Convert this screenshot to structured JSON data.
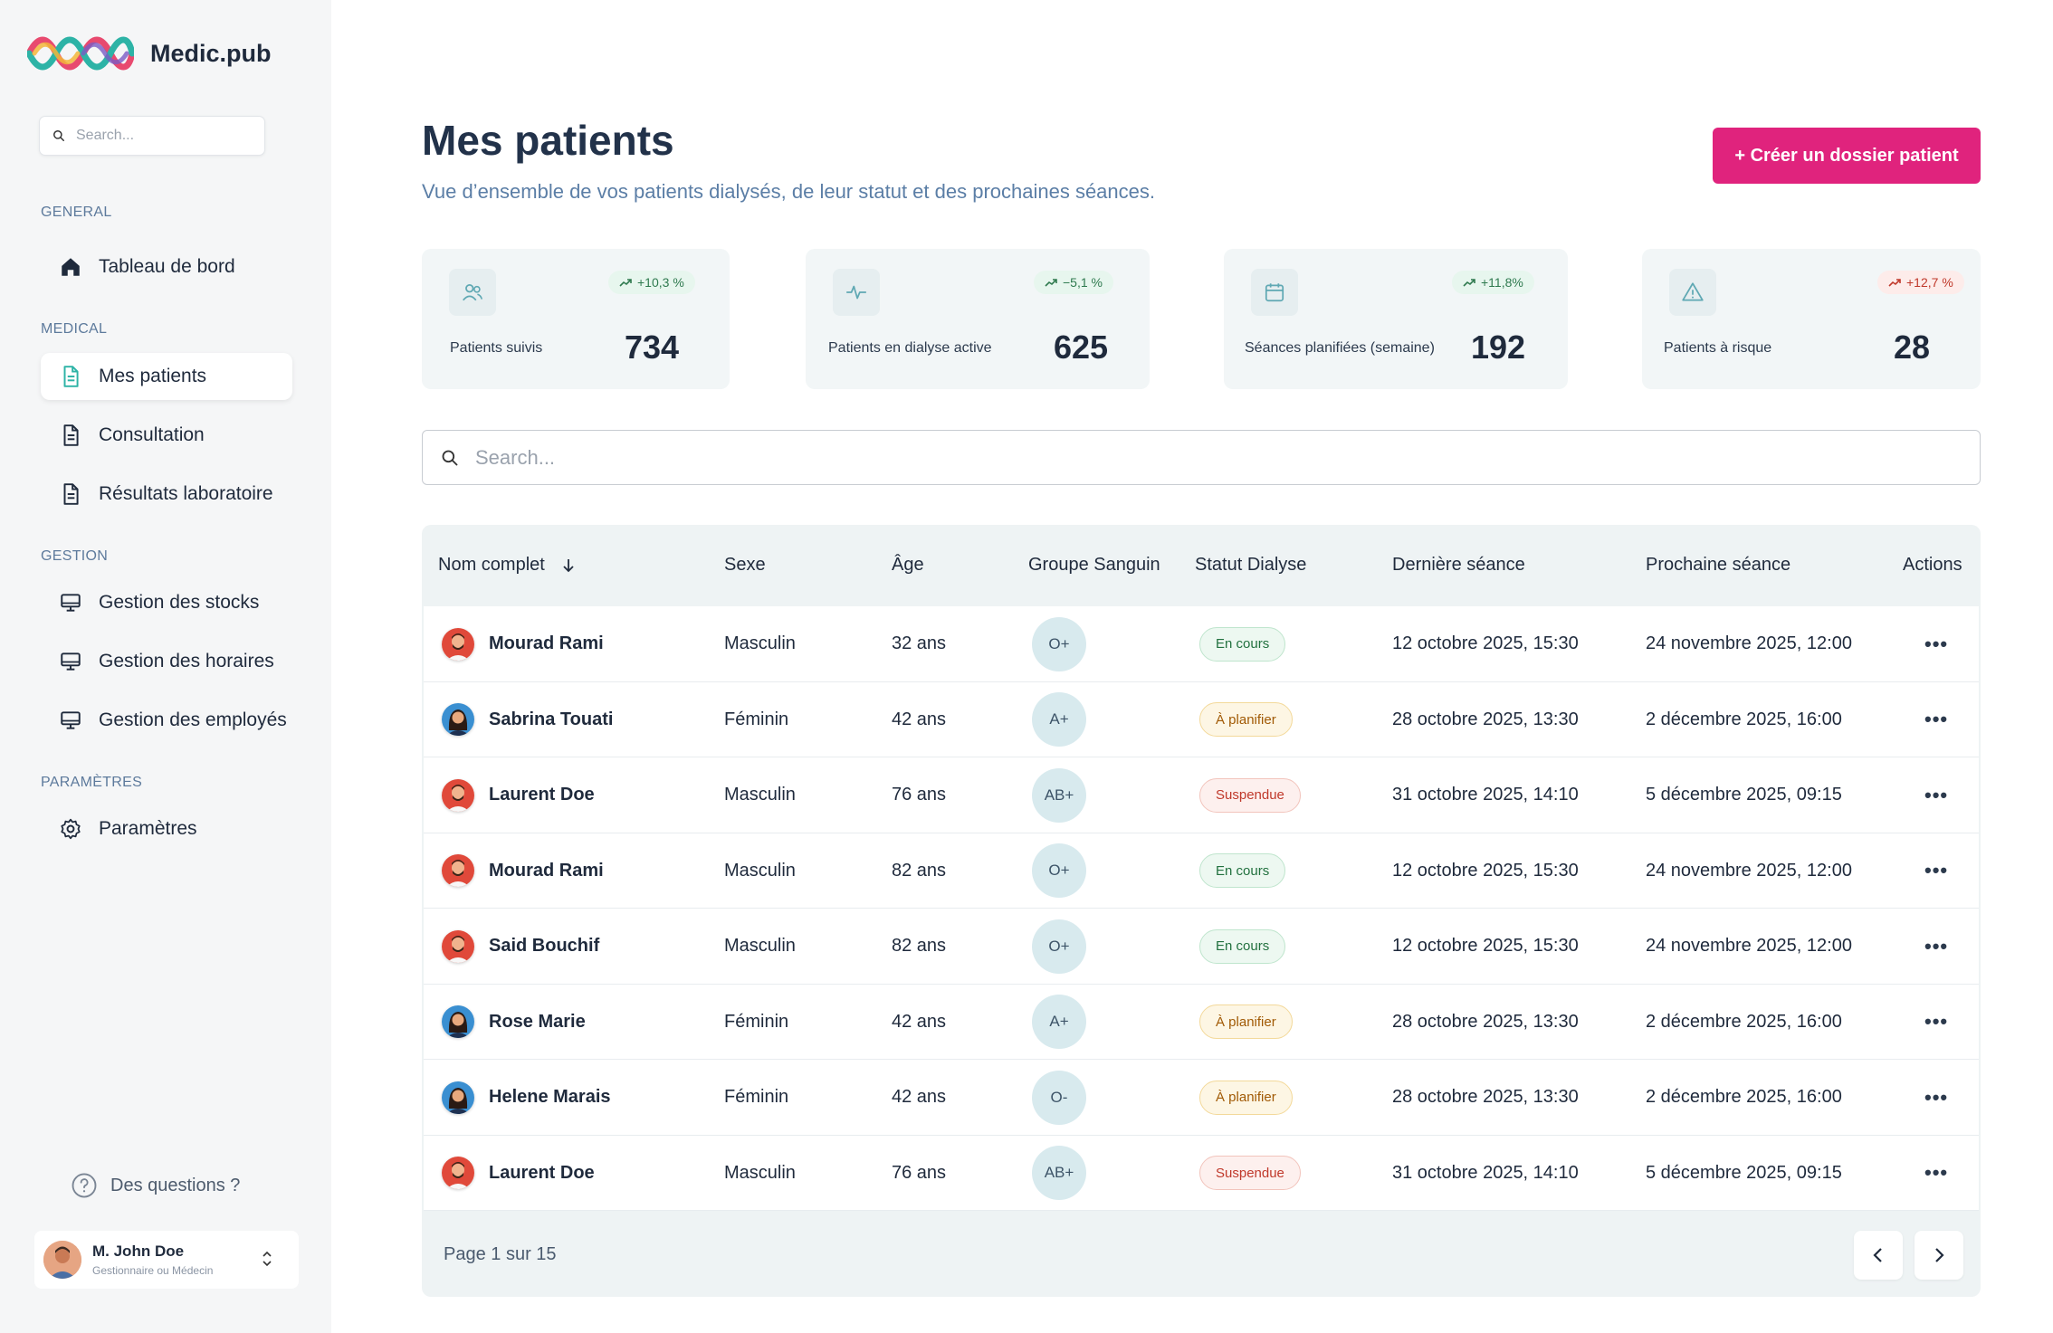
{
  "app": {
    "name": "Medic.pub"
  },
  "sidebar": {
    "search_placeholder": "Search...",
    "sections": {
      "general": "GENERAL",
      "medical": "MEDICAL",
      "gestion": "GESTION",
      "parametres": "PARAMÈTRES"
    },
    "items": {
      "dashboard": "Tableau de bord",
      "patients": "Mes patients",
      "consultation": "Consultation",
      "lab": "Résultats laboratoire",
      "stocks": "Gestion des stocks",
      "horaires": "Gestion des horaires",
      "employes": "Gestion des employés",
      "settings": "Paramètres"
    },
    "active_item": "patients",
    "help": "Des questions ?",
    "user": {
      "name": "M. John Doe",
      "role": "Gestionnaire ou Médecin"
    }
  },
  "header": {
    "title": "Mes patients",
    "subtitle": "Vue d’ensemble de vos patients dialysés, de leur statut et des prochaines séances.",
    "create_button": "+ Créer un dossier patient"
  },
  "stats": [
    {
      "label": "Patients suivis",
      "value": "734",
      "trend": "+10,3 %",
      "trend_color": "green",
      "icon": "users-icon"
    },
    {
      "label": "Patients en dialyse active",
      "value": "625",
      "trend": "−5,1 %",
      "trend_color": "green",
      "icon": "activity-icon"
    },
    {
      "label": "Séances planifiées (semaine)",
      "value": "192",
      "trend": "+11,8%",
      "trend_color": "green",
      "icon": "calendar-icon"
    },
    {
      "label": "Patients à risque",
      "value": "28",
      "trend": "+12,7 %",
      "trend_color": "red",
      "icon": "warning-icon"
    }
  ],
  "search": {
    "placeholder": "Search..."
  },
  "table": {
    "columns": {
      "name": "Nom complet",
      "sex": "Sexe",
      "age": "Âge",
      "blood": "Groupe Sanguin",
      "status": "Statut Dialyse",
      "last": "Dernière séance",
      "next": "Prochaine séance",
      "actions": "Actions"
    },
    "rows": [
      {
        "name": "Mourad Rami",
        "sex": "Masculin",
        "age": "32 ans",
        "blood": "O+",
        "status": "En cours",
        "status_type": "green",
        "last": "12 octobre 2025, 15:30",
        "next": "24 novembre 2025, 12:00",
        "avatar": "male"
      },
      {
        "name": "Sabrina Touati",
        "sex": "Féminin",
        "age": "42 ans",
        "blood": "A+",
        "status": "À planifier",
        "status_type": "orange",
        "last": "28 octobre 2025, 13:30",
        "next": "2 décembre 2025, 16:00",
        "avatar": "female"
      },
      {
        "name": "Laurent Doe",
        "sex": "Masculin",
        "age": "76 ans",
        "blood": "AB+",
        "status": "Suspendue",
        "status_type": "red",
        "last": "31 octobre 2025, 14:10",
        "next": "5 décembre 2025, 09:15",
        "avatar": "male"
      },
      {
        "name": "Mourad Rami",
        "sex": "Masculin",
        "age": "82 ans",
        "blood": "O+",
        "status": "En cours",
        "status_type": "green",
        "last": "12 octobre 2025, 15:30",
        "next": "24 novembre 2025, 12:00",
        "avatar": "male"
      },
      {
        "name": "Said Bouchif",
        "sex": "Masculin",
        "age": "82 ans",
        "blood": "O+",
        "status": "En cours",
        "status_type": "green",
        "last": "12 octobre 2025, 15:30",
        "next": "24 novembre 2025, 12:00",
        "avatar": "male"
      },
      {
        "name": "Rose Marie",
        "sex": "Féminin",
        "age": "42 ans",
        "blood": "A+",
        "status": "À planifier",
        "status_type": "orange",
        "last": "28 octobre 2025, 13:30",
        "next": "2 décembre 2025, 16:00",
        "avatar": "female"
      },
      {
        "name": "Helene Marais",
        "sex": "Féminin",
        "age": "42 ans",
        "blood": "O-",
        "status": "À planifier",
        "status_type": "orange",
        "last": "28 octobre 2025, 13:30",
        "next": "2 décembre 2025, 16:00",
        "avatar": "female"
      },
      {
        "name": "Laurent Doe",
        "sex": "Masculin",
        "age": "76 ans",
        "blood": "AB+",
        "status": "Suspendue",
        "status_type": "red",
        "last": "31 octobre 2025, 14:10",
        "next": "5 décembre 2025, 09:15",
        "avatar": "male"
      }
    ],
    "pagination": "Page 1 sur 15"
  },
  "colors": {
    "accent": "#e0237d",
    "title": "#22324a",
    "subtitle": "#5b7ea6"
  }
}
